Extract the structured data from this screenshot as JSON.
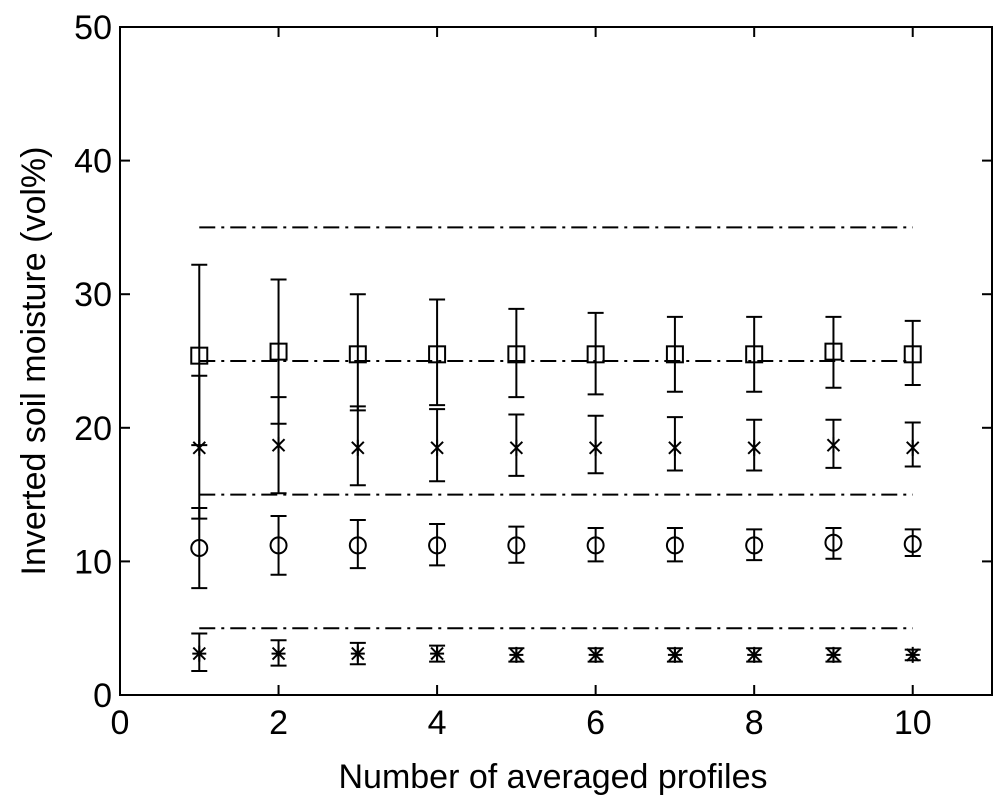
{
  "chart_data": {
    "type": "scatter",
    "title": "",
    "xlabel": "Number of averaged profiles",
    "ylabel": "Inverted soil moisture (vol%)",
    "xlim": [
      0,
      11
    ],
    "ylim": [
      0,
      50
    ],
    "xticks": [
      0,
      2,
      4,
      6,
      8,
      10
    ],
    "yticks": [
      0,
      10,
      20,
      30,
      40,
      50
    ],
    "grid": false,
    "legend": "none",
    "color": "#000000",
    "x": [
      1,
      2,
      3,
      4,
      5,
      6,
      7,
      8,
      9,
      10
    ],
    "series": [
      {
        "marker": "square",
        "values": [
          25.4,
          25.7,
          25.5,
          25.5,
          25.5,
          25.5,
          25.5,
          25.5,
          25.7,
          25.5
        ],
        "lower": [
          18.7,
          20.3,
          21.3,
          21.7,
          22.3,
          22.5,
          22.7,
          22.7,
          23.0,
          23.2
        ],
        "upper": [
          32.2,
          31.1,
          30.0,
          29.6,
          28.9,
          28.6,
          28.3,
          28.3,
          28.3,
          28.0
        ]
      },
      {
        "marker": "star",
        "values": [
          18.5,
          18.7,
          18.5,
          18.5,
          18.5,
          18.5,
          18.5,
          18.5,
          18.7,
          18.5
        ],
        "lower": [
          13.2,
          15.1,
          15.7,
          16.0,
          16.4,
          16.6,
          16.8,
          16.8,
          17.0,
          17.1
        ],
        "upper": [
          23.9,
          22.3,
          21.6,
          21.4,
          21.0,
          20.9,
          20.8,
          20.6,
          20.6,
          20.4
        ]
      },
      {
        "marker": "circle",
        "values": [
          11.0,
          11.2,
          11.2,
          11.2,
          11.2,
          11.2,
          11.2,
          11.2,
          11.4,
          11.3
        ],
        "lower": [
          8.0,
          9.0,
          9.5,
          9.7,
          9.9,
          10.0,
          10.0,
          10.1,
          10.2,
          10.4
        ],
        "upper": [
          14.0,
          13.4,
          13.1,
          12.8,
          12.6,
          12.5,
          12.5,
          12.4,
          12.5,
          12.4
        ]
      },
      {
        "marker": "asterisk",
        "values": [
          3.1,
          3.1,
          3.1,
          3.1,
          3.0,
          3.0,
          3.0,
          3.0,
          3.0,
          3.0
        ],
        "lower": [
          1.8,
          2.2,
          2.3,
          2.5,
          2.5,
          2.5,
          2.5,
          2.5,
          2.5,
          2.6
        ],
        "upper": [
          4.6,
          4.1,
          3.9,
          3.7,
          3.5,
          3.5,
          3.5,
          3.5,
          3.5,
          3.4
        ]
      }
    ],
    "reference_lines": {
      "style": "dash-dot",
      "x_range": [
        1,
        10
      ],
      "y_values": [
        35,
        25,
        15,
        5
      ]
    }
  }
}
